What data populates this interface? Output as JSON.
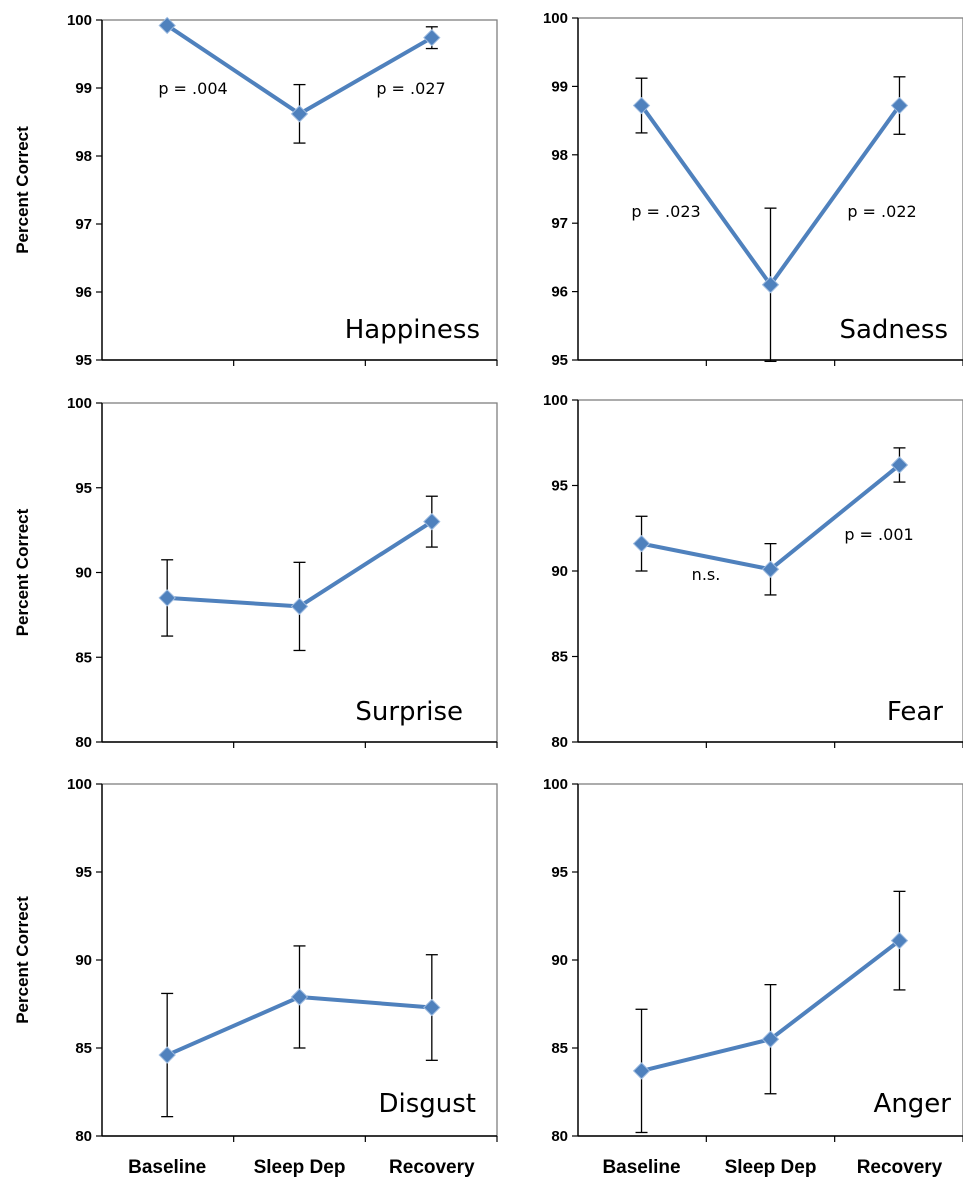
{
  "figure": {
    "series_color": "#4F81BD",
    "y_axis_title": "Percent Correct"
  },
  "chart_data": [
    {
      "type": "line",
      "title": "Happiness",
      "categories": [
        "Baseline",
        "Sleep Dep",
        "Recovery"
      ],
      "values": [
        99.92,
        98.62,
        99.74
      ],
      "error": [
        0.0,
        0.43,
        0.16
      ],
      "ylim": [
        95,
        100
      ],
      "yticks": [
        95,
        96,
        97,
        98,
        99,
        100
      ],
      "ylabel": "Percent Correct",
      "annotations": [
        "p = .004",
        "p = .027"
      ]
    },
    {
      "type": "line",
      "title": "Sadness",
      "categories": [
        "Baseline",
        "Sleep Dep",
        "Recovery"
      ],
      "values": [
        98.72,
        96.1,
        98.72
      ],
      "error": [
        0.4,
        1.12,
        0.42
      ],
      "ylim": [
        95,
        100
      ],
      "yticks": [
        95,
        96,
        97,
        98,
        99,
        100
      ],
      "ylabel": "",
      "annotations": [
        "p = .023",
        "p = .022"
      ]
    },
    {
      "type": "line",
      "title": "Surprise",
      "categories": [
        "Baseline",
        "Sleep Dep",
        "Recovery"
      ],
      "values": [
        88.5,
        88.0,
        93.0
      ],
      "error": [
        2.25,
        2.6,
        1.5
      ],
      "ylim": [
        80,
        100
      ],
      "yticks": [
        80,
        85,
        90,
        95,
        100
      ],
      "ylabel": "Percent Correct",
      "annotations": []
    },
    {
      "type": "line",
      "title": "Fear",
      "categories": [
        "Baseline",
        "Sleep Dep",
        "Recovery"
      ],
      "values": [
        91.6,
        90.1,
        96.2
      ],
      "error": [
        1.6,
        1.5,
        1.0
      ],
      "ylim": [
        80,
        100
      ],
      "yticks": [
        80,
        85,
        90,
        95,
        100
      ],
      "ylabel": "",
      "annotations": [
        "n.s.",
        "p = .001"
      ]
    },
    {
      "type": "line",
      "title": "Disgust",
      "categories": [
        "Baseline",
        "Sleep Dep",
        "Recovery"
      ],
      "values": [
        84.6,
        87.9,
        87.3
      ],
      "error": [
        3.5,
        2.9,
        3.0
      ],
      "ylim": [
        80,
        100
      ],
      "yticks": [
        80,
        85,
        90,
        95,
        100
      ],
      "ylabel": "Percent Correct",
      "annotations": []
    },
    {
      "type": "line",
      "title": "Anger",
      "categories": [
        "Baseline",
        "Sleep Dep",
        "Recovery"
      ],
      "values": [
        83.7,
        85.5,
        91.1
      ],
      "error": [
        3.5,
        3.1,
        2.8
      ],
      "ylim": [
        80,
        100
      ],
      "yticks": [
        80,
        85,
        90,
        95,
        100
      ],
      "ylabel": "",
      "annotations": []
    }
  ],
  "x_axis_labels": [
    "Baseline",
    "Sleep Dep",
    "Recovery"
  ]
}
